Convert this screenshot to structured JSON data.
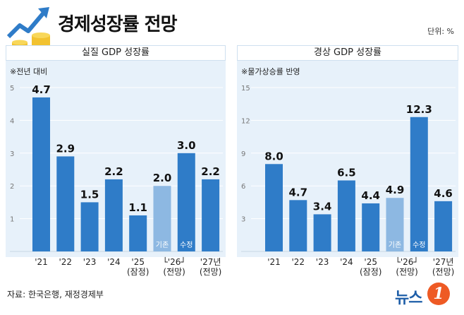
{
  "header": {
    "title": "경제성장률 전망",
    "unit": "단위: %"
  },
  "source": "자료: 한국은행, 재정경제부",
  "brand": {
    "text": "뉴스",
    "badge": "1"
  },
  "colors": {
    "bar": "#2f7cc8",
    "bar_light": "#8db8e2",
    "panel_bg": "#e7f1fa"
  },
  "chart_data": [
    {
      "type": "bar",
      "title": "실질 GDP 성장률",
      "note": "※전년 대비",
      "ylim": [
        0,
        5
      ],
      "yticks": [
        1,
        2,
        3,
        4,
        5
      ],
      "categories": [
        "'21",
        "'22",
        "'23",
        "'24",
        "'25\n(잠정)",
        "'26 기존",
        "'26 수정",
        "'27년\n(전망)"
      ],
      "values": [
        4.7,
        2.9,
        1.5,
        2.2,
        1.1,
        2.0,
        3.0,
        2.2
      ],
      "value_labels": [
        "4.7",
        "2.9",
        "1.5",
        "2.2",
        "1.1",
        "2.0",
        "3.0",
        "2.2"
      ],
      "bar_styles": [
        "dark",
        "dark",
        "dark",
        "dark",
        "dark",
        "light",
        "dark",
        "dark"
      ],
      "inner_labels": [
        "",
        "",
        "",
        "",
        "",
        "기존",
        "수정",
        ""
      ],
      "tick_labels": [
        [
          "'21"
        ],
        [
          "'22"
        ],
        [
          "'23"
        ],
        [
          "'24"
        ],
        [
          "'25",
          "(잠정)"
        ],
        [
          "└'26┘",
          "(전망)"
        ],
        [
          "'27년",
          "(전망)"
        ]
      ],
      "grid": true
    },
    {
      "type": "bar",
      "title": "경상 GDP 성장률",
      "note": "※물가상승률 반영",
      "ylim": [
        0,
        15
      ],
      "yticks": [
        3,
        6,
        9,
        12,
        15
      ],
      "categories": [
        "'21",
        "'22",
        "'23",
        "'24",
        "'25\n(잠정)",
        "'26 기존",
        "'26 수정",
        "'27년\n(전망)"
      ],
      "values": [
        8.0,
        4.7,
        3.4,
        6.5,
        4.4,
        4.9,
        12.3,
        4.6
      ],
      "value_labels": [
        "8.0",
        "4.7",
        "3.4",
        "6.5",
        "4.4",
        "4.9",
        "12.3",
        "4.6"
      ],
      "bar_styles": [
        "dark",
        "dark",
        "dark",
        "dark",
        "dark",
        "light",
        "dark",
        "dark"
      ],
      "inner_labels": [
        "",
        "",
        "",
        "",
        "",
        "기존",
        "수정",
        ""
      ],
      "tick_labels": [
        [
          "'21"
        ],
        [
          "'22"
        ],
        [
          "'23"
        ],
        [
          "'24"
        ],
        [
          "'25",
          "(잠정)"
        ],
        [
          "└'26┘",
          "(전망)"
        ],
        [
          "'27년",
          "(전망)"
        ]
      ],
      "grid": true
    }
  ]
}
